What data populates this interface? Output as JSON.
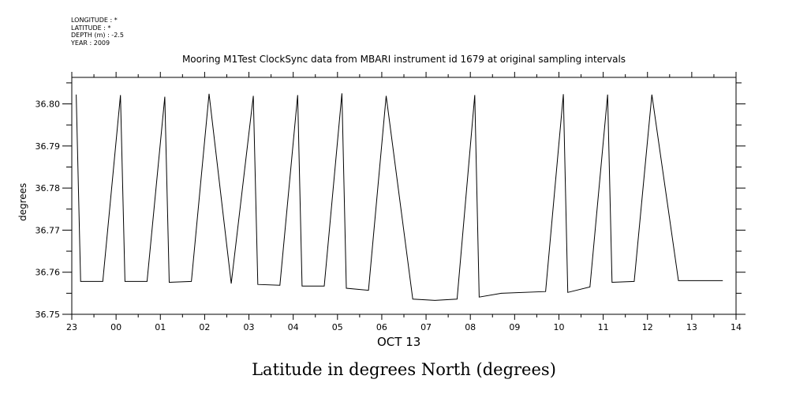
{
  "meta": {
    "longitude": "LONGITUDE : *",
    "latitude": "LATITUDE : *",
    "depth": "DEPTH (m) : -2.5",
    "year": "YEAR : 2009"
  },
  "footer_title": "Latitude in degrees North (degrees)",
  "chart_data": {
    "type": "line",
    "title": "Mooring M1Test ClockSync data from MBARI instrument id 1679 at original sampling intervals",
    "xlabel": "OCT 13",
    "ylabel": "degrees",
    "x_ticks": [
      "23",
      "00",
      "01",
      "02",
      "03",
      "04",
      "05",
      "06",
      "07",
      "08",
      "09",
      "10",
      "11",
      "12",
      "13",
      "14"
    ],
    "y_ticks": [
      "36.75",
      "36.76",
      "36.77",
      "36.78",
      "36.79",
      "36.80"
    ],
    "xlim": [
      -1,
      14
    ],
    "ylim": [
      36.75,
      36.8063
    ],
    "grid": false,
    "series": [
      {
        "x": [
          -0.9,
          -0.8,
          -0.3,
          0.1,
          0.2,
          0.7,
          1.1,
          1.2,
          1.7,
          2.1,
          2.6,
          3.1,
          3.2,
          3.7,
          4.1,
          4.2,
          4.7,
          5.1,
          5.2,
          5.7,
          6.1,
          6.7,
          7.2,
          7.7,
          8.1,
          8.2,
          8.7,
          9.7,
          10.1,
          10.2,
          10.7,
          11.1,
          11.2,
          11.7,
          12.1,
          12.7,
          13.7
        ],
        "y": [
          36.8022,
          36.7578,
          36.7578,
          36.8021,
          36.7578,
          36.7578,
          36.8017,
          36.7576,
          36.7578,
          36.8024,
          36.7573,
          36.8019,
          36.7571,
          36.7569,
          36.8021,
          36.7567,
          36.7567,
          36.8025,
          36.7562,
          36.7557,
          36.8019,
          36.7536,
          36.7533,
          36.7536,
          36.8021,
          36.7541,
          36.755,
          36.7554,
          36.8023,
          36.7552,
          36.7565,
          36.8022,
          36.7576,
          36.7578,
          36.8022,
          36.758,
          36.758
        ]
      }
    ]
  }
}
